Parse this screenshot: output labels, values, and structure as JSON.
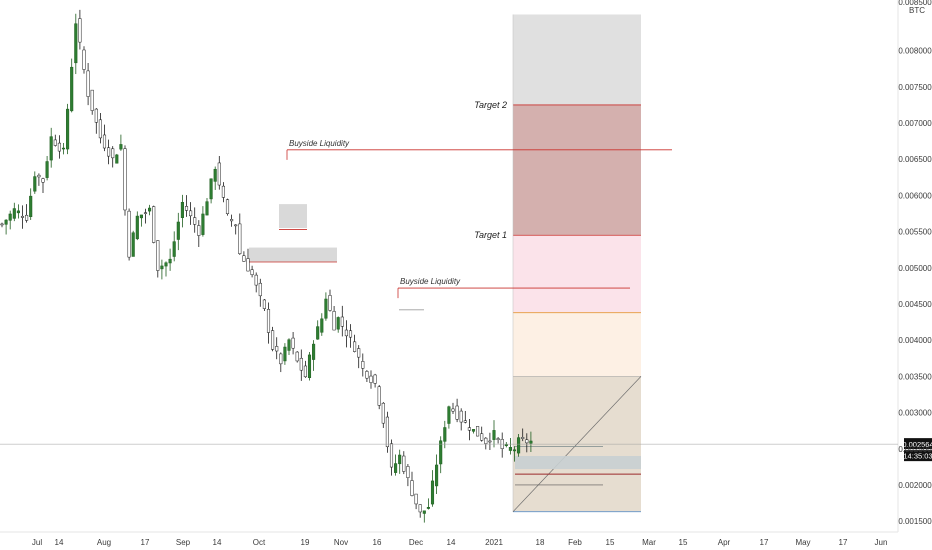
{
  "chart_data": {
    "type": "candlestick",
    "currency": "0.008500 BTC",
    "x_ticks": [
      "Jul",
      "14",
      "Aug",
      "17",
      "Sep",
      "14",
      "Oct",
      "19",
      "Nov",
      "16",
      "Dec",
      "14",
      "2021",
      "18",
      "Feb",
      "15",
      "Mar",
      "15",
      "Apr",
      "17",
      "May",
      "17",
      "Jun"
    ],
    "y_ticks": [
      "0.008000",
      "0.007500",
      "0.007000",
      "0.006500",
      "0.006000",
      "0.005500",
      "0.005000",
      "0.004500",
      "0.004000",
      "0.003500",
      "0.003000",
      "0.002500",
      "0.002000",
      "0.001500"
    ],
    "ylim": [
      0.00135,
      0.0087
    ],
    "price_scale_top": 0.0085,
    "last_price": "0.002564",
    "last_price_value": 0.002564,
    "countdown": "14:35:03",
    "close_path_x": [
      0,
      3,
      6,
      8,
      10,
      12,
      15,
      18,
      21,
      24,
      27,
      29,
      30,
      31,
      33,
      36,
      38,
      41,
      44,
      48,
      52,
      55,
      57,
      58,
      61,
      64,
      66,
      68,
      70,
      72,
      74,
      76,
      78,
      79,
      81,
      82,
      84,
      86,
      88,
      91,
      93,
      95,
      97,
      100,
      102,
      104,
      106,
      109,
      112,
      114,
      116,
      118,
      120,
      122,
      123,
      124,
      125,
      126,
      128,
      129
    ],
    "close_path_y": [
      0.0056,
      0.0058,
      0.0057,
      0.0063,
      0.0062,
      0.0068,
      0.0066,
      0.0084,
      0.0074,
      0.0068,
      0.0065,
      0.0067,
      0.0058,
      0.0052,
      0.0057,
      0.0058,
      0.005,
      0.0051,
      0.0059,
      0.0055,
      0.0064,
      0.0057,
      0.0056,
      0.0052,
      0.0049,
      0.0044,
      0.0039,
      0.0037,
      0.004,
      0.0037,
      0.0035,
      0.004,
      0.0043,
      0.0046,
      0.0042,
      0.0043,
      0.0041,
      0.0039,
      0.0036,
      0.0034,
      0.0029,
      0.0022,
      0.0024,
      0.0019,
      0.0016,
      0.0017,
      0.0023,
      0.0031,
      0.0029,
      0.0028,
      0.0027,
      0.0026,
      0.0027,
      0.0025,
      0.0025,
      0.0025,
      0.0025,
      0.0026,
      0.0026,
      0.0026
    ],
    "annotations": [
      {
        "label": "Buyside Liquidity",
        "value": 0.00663
      },
      {
        "label": "Buyside Liquidity",
        "value": 0.00472
      }
    ],
    "zones": [
      {
        "label": "Target 2",
        "top": 0.0085,
        "bottom": 0.00725,
        "color": "#e0e0e0"
      },
      {
        "label": "",
        "top": 0.00725,
        "bottom": 0.00545,
        "color": "#d4b0ae"
      },
      {
        "label": "Target 1",
        "top": 0.00545,
        "bottom": 0.00438,
        "color": "#fbe3ea"
      },
      {
        "label": "",
        "top": 0.00438,
        "bottom": 0.0035,
        "color": "#fdf0e4"
      },
      {
        "label": "",
        "top": 0.0035,
        "bottom": 0.00163,
        "color": "#e6ddd0"
      }
    ],
    "grid": false,
    "legend": "none"
  }
}
